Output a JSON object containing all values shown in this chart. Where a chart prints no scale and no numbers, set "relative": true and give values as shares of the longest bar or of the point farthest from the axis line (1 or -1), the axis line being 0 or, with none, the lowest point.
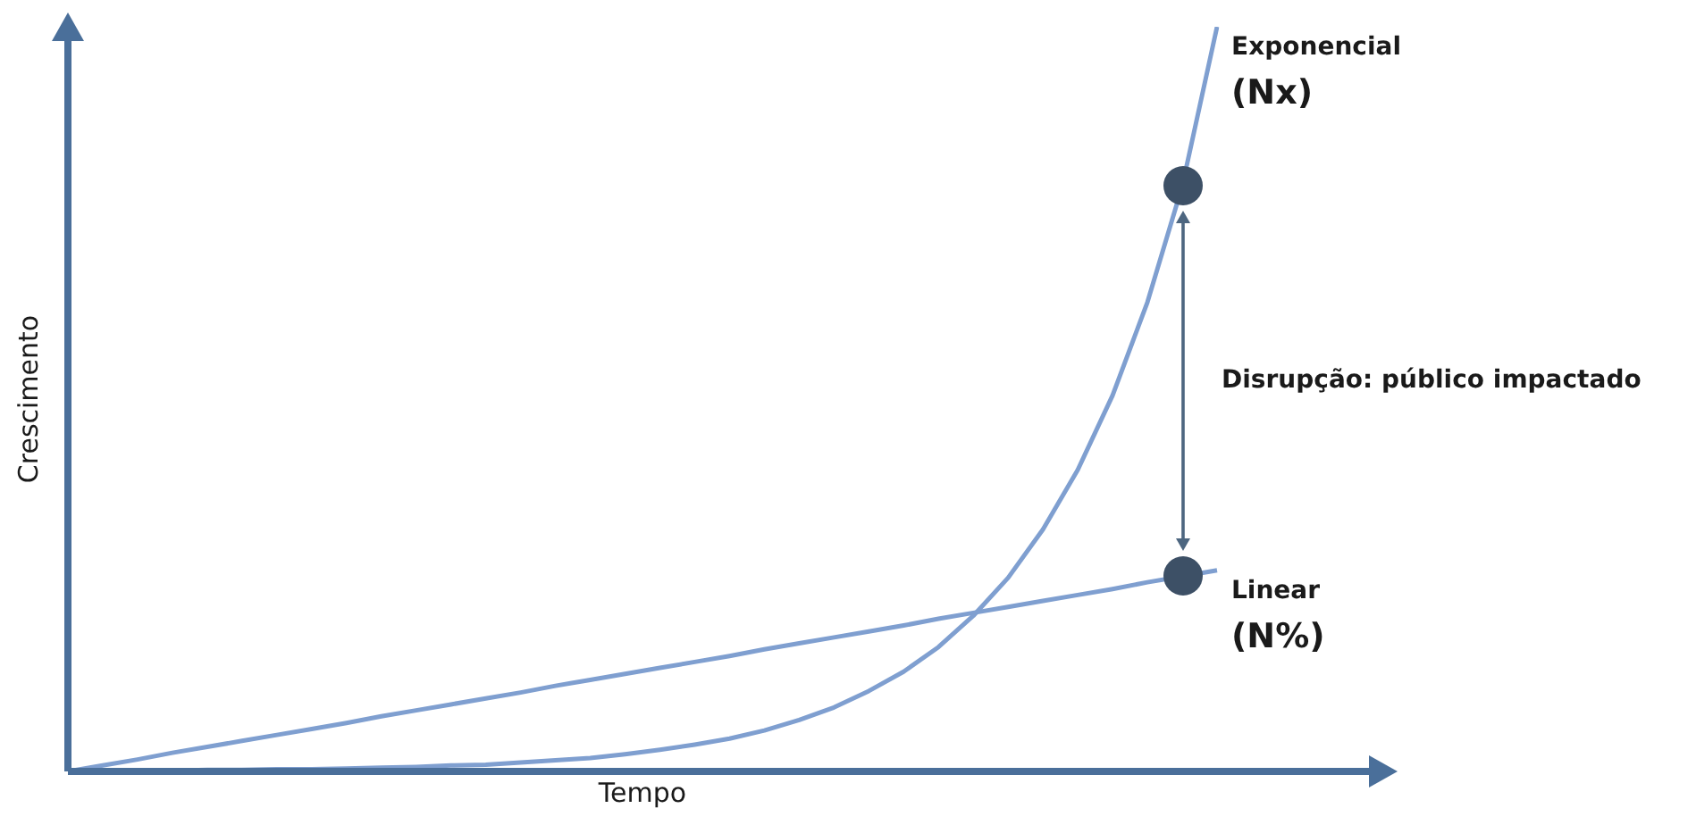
{
  "chart_data": {
    "type": "line",
    "relative": true,
    "xlabel": "Tempo",
    "ylabel": "Crescimento",
    "categories": [
      null,
      null,
      null,
      null,
      null,
      null,
      null,
      null,
      null,
      null,
      null,
      null,
      null,
      null,
      null,
      null,
      null,
      null,
      null,
      null,
      null,
      null,
      null,
      null,
      null,
      null,
      null,
      null,
      null,
      null,
      null,
      null,
      null,
      null
    ],
    "series": [
      {
        "name": "Exponencial (Nx)",
        "color": "#7f9fd0",
        "values": [
          0,
          0.001,
          0.001,
          0.001,
          0.002,
          0.002,
          0.003,
          0.003,
          0.004,
          0.005,
          0.006,
          0.008,
          0.009,
          0.012,
          0.015,
          0.018,
          0.023,
          0.029,
          0.036,
          0.044,
          0.055,
          0.069,
          0.086,
          0.108,
          0.134,
          0.167,
          0.209,
          0.26,
          0.325,
          0.405,
          0.505,
          0.63,
          0.786,
          1
        ]
      },
      {
        "name": "Linear (N%)",
        "color": "#7f9fd0",
        "values": [
          0,
          0.008,
          0.016,
          0.025,
          0.033,
          0.041,
          0.049,
          0.057,
          0.065,
          0.074,
          0.082,
          0.09,
          0.098,
          0.106,
          0.115,
          0.123,
          0.131,
          0.139,
          0.147,
          0.155,
          0.164,
          0.172,
          0.18,
          0.188,
          0.196,
          0.205,
          0.213,
          0.221,
          0.229,
          0.237,
          0.245,
          0.254,
          0.262,
          0.27
        ]
      }
    ],
    "annotations": [
      "Disrupção: público impactado"
    ]
  }
}
